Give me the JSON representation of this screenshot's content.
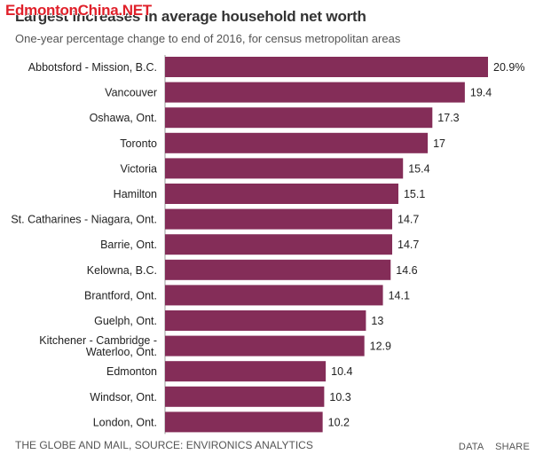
{
  "watermark": "EdmontonChina.NET",
  "chart_data": {
    "type": "bar",
    "orientation": "horizontal",
    "title": "Largest increases in average household net worth",
    "subtitle": "One-year percentage change to end of 2016, for census metropolitan areas",
    "categories": [
      "Abbotsford - Mission, B.C.",
      "Vancouver",
      "Oshawa, Ont.",
      "Toronto",
      "Victoria",
      "Hamilton",
      "St. Catharines - Niagara, Ont.",
      "Barrie, Ont.",
      "Kelowna, B.C.",
      "Brantford, Ont.",
      "Guelph, Ont.",
      "Kitchener - Cambridge - Waterloo, Ont.",
      "Edmonton",
      "Windsor, Ont.",
      "London, Ont."
    ],
    "category_lines": [
      [
        "Abbotsford - Mission, B.C."
      ],
      [
        "Vancouver"
      ],
      [
        "Oshawa, Ont."
      ],
      [
        "Toronto"
      ],
      [
        "Victoria"
      ],
      [
        "Hamilton"
      ],
      [
        "St. Catharines - Niagara, Ont."
      ],
      [
        "Barrie, Ont."
      ],
      [
        "Kelowna, B.C."
      ],
      [
        "Brantford, Ont."
      ],
      [
        "Guelph, Ont."
      ],
      [
        "Kitchener - Cambridge -",
        "Waterloo, Ont."
      ],
      [
        "Edmonton"
      ],
      [
        "Windsor, Ont."
      ],
      [
        "London, Ont."
      ]
    ],
    "values": [
      20.9,
      19.4,
      17.3,
      17,
      15.4,
      15.1,
      14.7,
      14.7,
      14.6,
      14.1,
      13,
      12.9,
      10.4,
      10.3,
      10.2
    ],
    "value_labels": [
      "20.9%",
      "19.4",
      "17.3",
      "17",
      "15.4",
      "15.1",
      "14.7",
      "14.7",
      "14.6",
      "14.1",
      "13",
      "12.9",
      "10.4",
      "10.3",
      "10.2"
    ],
    "xlim": [
      0,
      20.9
    ],
    "bar_color": "#842d58",
    "grid": false,
    "xlabel": "",
    "ylabel": ""
  },
  "footer": {
    "source": "THE GLOBE AND MAIL, SOURCE: ENVIRONICS ANALYTICS",
    "data_link": "DATA",
    "share_link": "SHARE"
  }
}
